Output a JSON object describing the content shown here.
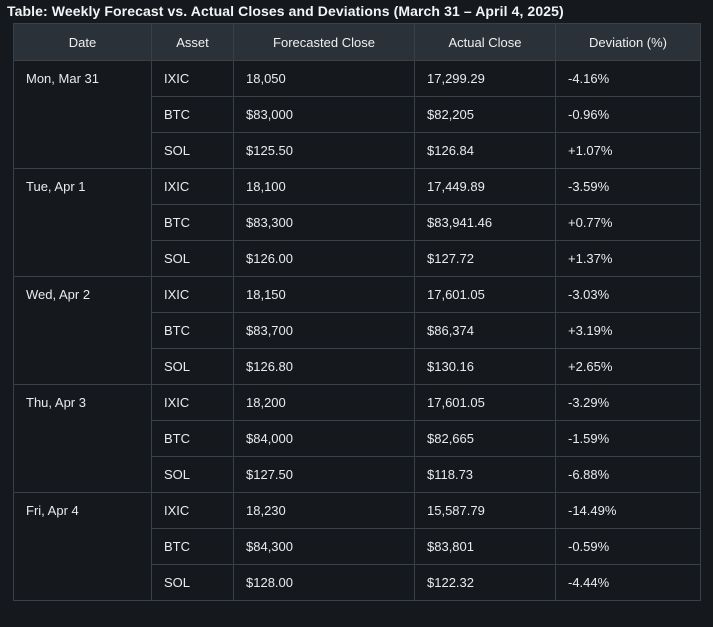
{
  "title": "Table: Weekly Forecast vs. Actual Closes and Deviations (March 31 – April 4, 2025)",
  "table": {
    "headers": [
      "Date",
      "Asset",
      "Forecasted Close",
      "Actual Close",
      "Deviation (%)"
    ],
    "rows": [
      {
        "date": "Mon, Mar 31",
        "asset": "IXIC",
        "forecast": "18,050",
        "actual": "17,299.29",
        "deviation": "-4.16%"
      },
      {
        "date": "",
        "asset": "BTC",
        "forecast": "$83,000",
        "actual": "$82,205",
        "deviation": "-0.96%"
      },
      {
        "date": "",
        "asset": "SOL",
        "forecast": "$125.50",
        "actual": "$126.84",
        "deviation": "+1.07%"
      },
      {
        "date": "Tue, Apr 1",
        "asset": "IXIC",
        "forecast": "18,100",
        "actual": "17,449.89",
        "deviation": "-3.59%"
      },
      {
        "date": "",
        "asset": "BTC",
        "forecast": "$83,300",
        "actual": "$83,941.46",
        "deviation": "+0.77%"
      },
      {
        "date": "",
        "asset": "SOL",
        "forecast": "$126.00",
        "actual": "$127.72",
        "deviation": "+1.37%"
      },
      {
        "date": "Wed, Apr 2",
        "asset": "IXIC",
        "forecast": "18,150",
        "actual": "17,601.05",
        "deviation": "-3.03%"
      },
      {
        "date": "",
        "asset": "BTC",
        "forecast": "$83,700",
        "actual": "$86,374",
        "deviation": "+3.19%"
      },
      {
        "date": "",
        "asset": "SOL",
        "forecast": "$126.80",
        "actual": "$130.16",
        "deviation": "+2.65%"
      },
      {
        "date": "Thu, Apr 3",
        "asset": "IXIC",
        "forecast": "18,200",
        "actual": "17,601.05",
        "deviation": "-3.29%"
      },
      {
        "date": "",
        "asset": "BTC",
        "forecast": "$84,000",
        "actual": "$82,665",
        "deviation": "-1.59%"
      },
      {
        "date": "",
        "asset": "SOL",
        "forecast": "$127.50",
        "actual": "$118.73",
        "deviation": "-6.88%"
      },
      {
        "date": "Fri, Apr 4",
        "asset": "IXIC",
        "forecast": "18,230",
        "actual": "15,587.79",
        "deviation": "-14.49%"
      },
      {
        "date": "",
        "asset": "BTC",
        "forecast": "$84,300",
        "actual": "$83,801",
        "deviation": "-0.59%"
      },
      {
        "date": "",
        "asset": "SOL",
        "forecast": "$128.00",
        "actual": "$122.32",
        "deviation": "-4.44%"
      }
    ]
  }
}
